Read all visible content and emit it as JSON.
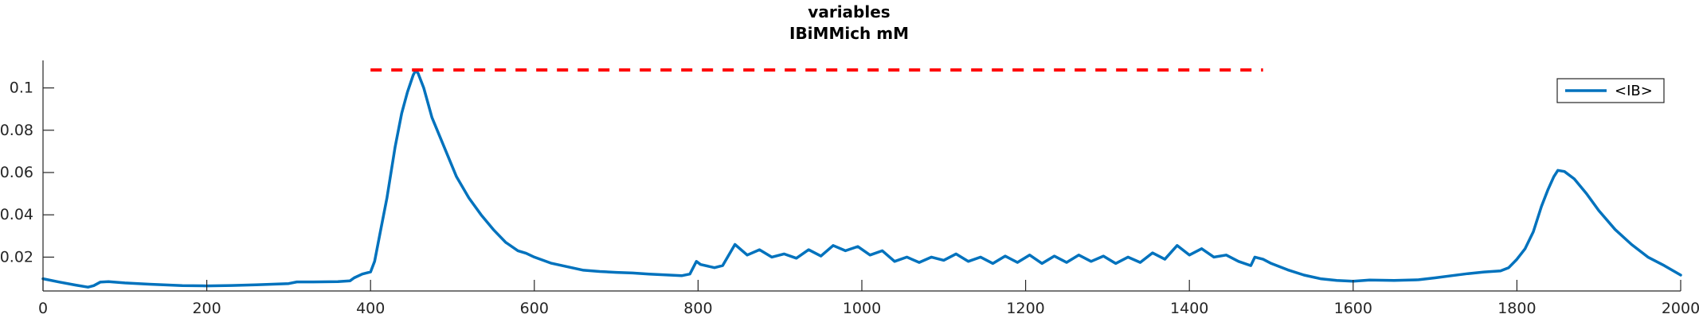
{
  "chart_data": {
    "type": "line",
    "title": "variables",
    "subtitle": "IBiMMich mM",
    "xlabel": "",
    "ylabel": "",
    "xlim": [
      0,
      2000
    ],
    "ylim": [
      0.004,
      0.113
    ],
    "xticks": [
      0,
      200,
      400,
      600,
      800,
      1000,
      1200,
      1400,
      1600,
      1800,
      2000
    ],
    "yticks": [
      0.02,
      0.04,
      0.06,
      0.08,
      0.1
    ],
    "ytick_labels": [
      "0.02",
      "0.04",
      "0.06",
      "0.08",
      "0.1"
    ],
    "grid": false,
    "legend_position": "top-right",
    "series": [
      {
        "name": "<IB>",
        "color": "#0072BD",
        "style": "solid",
        "x": [
          0,
          20,
          40,
          55,
          62,
          70,
          80,
          100,
          130,
          170,
          200,
          230,
          260,
          300,
          310,
          330,
          360,
          375,
          380,
          390,
          400,
          405,
          412,
          420,
          430,
          438,
          445,
          452,
          455,
          458,
          465,
          475,
          490,
          505,
          520,
          535,
          550,
          565,
          580,
          590,
          600,
          620,
          640,
          660,
          680,
          700,
          720,
          740,
          760,
          780,
          790,
          798,
          803,
          820,
          830,
          845,
          860,
          875,
          890,
          905,
          920,
          935,
          950,
          965,
          980,
          995,
          1010,
          1025,
          1040,
          1055,
          1070,
          1085,
          1100,
          1115,
          1130,
          1145,
          1160,
          1175,
          1190,
          1205,
          1220,
          1235,
          1250,
          1265,
          1280,
          1295,
          1310,
          1325,
          1340,
          1355,
          1370,
          1385,
          1400,
          1415,
          1430,
          1445,
          1460,
          1475,
          1480,
          1490,
          1500,
          1520,
          1540,
          1560,
          1580,
          1600,
          1620,
          1650,
          1680,
          1700,
          1720,
          1740,
          1760,
          1780,
          1790,
          1800,
          1810,
          1820,
          1830,
          1838,
          1845,
          1850,
          1858,
          1870,
          1885,
          1900,
          1920,
          1940,
          1960,
          1980,
          2000
        ],
        "values": [
          0.0098,
          0.0082,
          0.0068,
          0.0058,
          0.0065,
          0.0082,
          0.0084,
          0.0078,
          0.0072,
          0.0065,
          0.0064,
          0.0066,
          0.0069,
          0.0075,
          0.0083,
          0.0083,
          0.0084,
          0.0088,
          0.0102,
          0.012,
          0.013,
          0.018,
          0.032,
          0.048,
          0.072,
          0.088,
          0.098,
          0.106,
          0.1082,
          0.107,
          0.1,
          0.086,
          0.072,
          0.058,
          0.048,
          0.04,
          0.033,
          0.027,
          0.023,
          0.0218,
          0.02,
          0.0172,
          0.0155,
          0.0138,
          0.0132,
          0.0128,
          0.0125,
          0.012,
          0.0116,
          0.0112,
          0.012,
          0.018,
          0.0165,
          0.015,
          0.016,
          0.026,
          0.021,
          0.0235,
          0.02,
          0.0215,
          0.0195,
          0.0235,
          0.0205,
          0.0255,
          0.023,
          0.025,
          0.021,
          0.023,
          0.018,
          0.02,
          0.0175,
          0.02,
          0.0185,
          0.0215,
          0.018,
          0.02,
          0.017,
          0.0205,
          0.0175,
          0.021,
          0.017,
          0.0205,
          0.0175,
          0.021,
          0.018,
          0.0205,
          0.017,
          0.02,
          0.0175,
          0.022,
          0.019,
          0.0255,
          0.021,
          0.024,
          0.02,
          0.021,
          0.018,
          0.016,
          0.02,
          0.019,
          0.017,
          0.014,
          0.0115,
          0.0098,
          0.009,
          0.0086,
          0.0092,
          0.009,
          0.0093,
          0.0102,
          0.0112,
          0.0122,
          0.013,
          0.0135,
          0.015,
          0.019,
          0.024,
          0.032,
          0.044,
          0.052,
          0.058,
          0.061,
          0.0605,
          0.057,
          0.05,
          0.042,
          0.033,
          0.026,
          0.02,
          0.016,
          0.0115
        ]
      },
      {
        "name": "",
        "color": "#FF0000",
        "style": "dashed",
        "x": [
          400,
          1490
        ],
        "values": [
          0.1085,
          0.1085
        ]
      }
    ]
  }
}
